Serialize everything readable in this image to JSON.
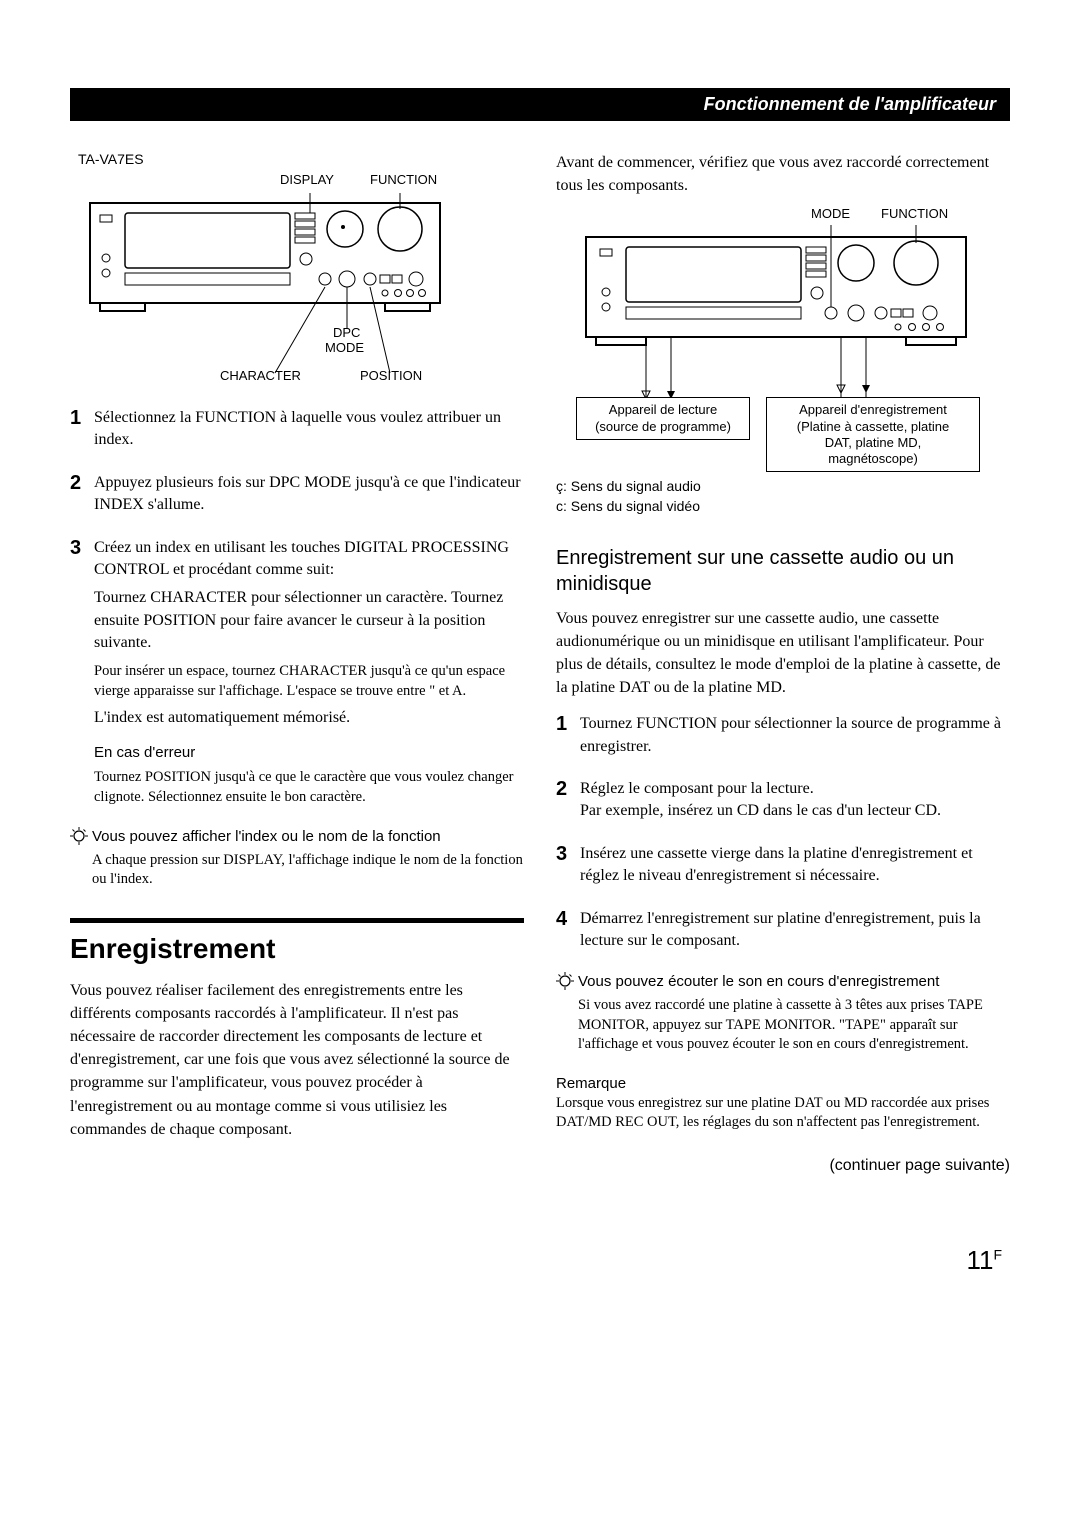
{
  "header_title": "Fonctionnement de l'amplificateur",
  "left": {
    "model_label": "TA-VA7ES",
    "diagram1_labels": {
      "display": "DISPLAY",
      "function": "FUNCTION",
      "dpc": "DPC",
      "mode": "MODE",
      "character": "CHARACTER",
      "position": "POSITION"
    },
    "steps": [
      {
        "n": "1",
        "body": "Sélectionnez la FUNCTION à laquelle vous voulez attribuer un index."
      },
      {
        "n": "2",
        "body": "Appuyez plusieurs fois sur DPC MODE jusqu'à ce que l'indicateur INDEX s'allume."
      },
      {
        "n": "3",
        "body": "Créez un index en utilisant les touches DIGITAL PROCESSING CONTROL et procédant comme suit:",
        "body2": "Tournez CHARACTER pour sélectionner un caractère. Tournez ensuite POSITION pour faire avancer le curseur à la position suivante.",
        "sub1": "Pour insérer un espace, tournez CHARACTER jusqu'à ce qu'un espace vierge apparaisse sur l'affichage. L'espace se trouve entre \" et A.",
        "last_line": "L'index est automatiquement mémorisé.",
        "error_heading": "En cas d'erreur",
        "error_text": "Tournez POSITION jusqu'à ce que le caractère que vous voulez changer clignote. Sélectionnez ensuite le bon caractère."
      }
    ],
    "tip": {
      "title": "Vous pouvez afficher l'index ou le nom de la fonction",
      "text": "A chaque pression sur DISPLAY, l'affichage indique le nom de la fonction ou l'index."
    },
    "section2_title": "Enregistrement",
    "section2_body": "Vous pouvez réaliser facilement des enregistrements entre les différents composants raccordés à l'amplificateur. Il n'est pas nécessaire de raccorder directement les composants de lecture et d'enregistrement, car une fois que vous avez sélectionné la source de programme sur l'amplificateur, vous pouvez procéder à l'enregistrement ou au montage comme si vous utilisiez les commandes de chaque composant."
  },
  "right": {
    "intro": "Avant de commencer, vérifiez que vous avez raccordé correctement tous les composants.",
    "diagram2_labels": {
      "mode": "MODE",
      "function": "FUNCTION",
      "playback_box": "Appareil de lecture\n(source de programme)",
      "record_box": "Appareil d'enregistrement\n(Platine à cassette, platine\nDAT, platine MD,\nmagnétoscope)"
    },
    "signal_audio": "ç: Sens du signal audio",
    "signal_video": "c: Sens du signal vidéo",
    "subsection_title": "Enregistrement sur une cassette audio ou un minidisque",
    "subsection_body": "Vous pouvez enregistrer sur une cassette audio, une cassette audionumérique ou un minidisque en utilisant l'amplificateur. Pour plus de détails, consultez le mode d'emploi de la platine à cassette, de la platine DAT ou de la platine MD.",
    "steps": [
      {
        "n": "1",
        "body": "Tournez FUNCTION pour sélectionner la source de programme à enregistrer."
      },
      {
        "n": "2",
        "body": "Réglez le composant pour la lecture.",
        "body2": "Par exemple, insérez un CD dans le cas d'un lecteur CD."
      },
      {
        "n": "3",
        "body": "Insérez une cassette vierge dans la platine d'enregistrement et réglez le niveau d'enregistrement si nécessaire."
      },
      {
        "n": "4",
        "body": "Démarrez l'enregistrement sur platine d'enregistrement, puis la lecture sur le composant."
      }
    ],
    "tip": {
      "title": "Vous pouvez écouter le son en cours d'enregistrement",
      "text": "Si vous avez raccordé une platine à cassette à 3 têtes aux prises TAPE MONITOR, appuyez sur TAPE MONITOR. \"TAPE\" apparaît sur l'affichage et vous pouvez écouter le son en cours d'enregistrement."
    },
    "remark_title": "Remarque",
    "remark_text": "Lorsque vous enregistrez sur une platine DAT ou MD raccordée aux prises DAT/MD REC OUT, les réglages du son n'affectent pas l'enregistrement.",
    "continue_note": "(continuer page suivante)"
  },
  "page_number_main": "11",
  "page_number_sup": "F",
  "colors": {
    "black": "#000000",
    "white": "#ffffff"
  }
}
